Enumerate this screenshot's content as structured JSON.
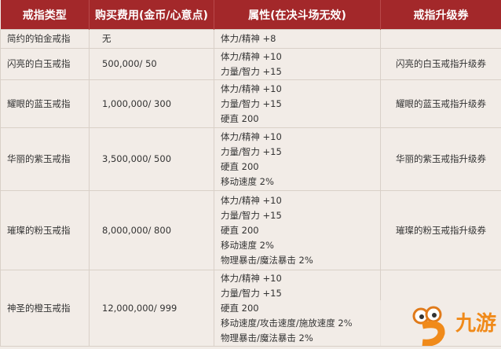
{
  "headers": [
    "戒指类型",
    "购买费用(金币/心意点)",
    "属性(在决斗场无效)",
    "戒指升级券"
  ],
  "rows": [
    {
      "name": "简约的铂金戒指",
      "cost": "无",
      "attrs": [
        "体力/精神 +8"
      ],
      "voucher": ""
    },
    {
      "name": "闪亮的白玉戒指",
      "cost": "500,000/ 50",
      "attrs": [
        "体力/精神 +10",
        "力量/智力 +15"
      ],
      "voucher": "闪亮的白玉戒指升级券"
    },
    {
      "name": "耀眼的蓝玉戒指",
      "cost": "1,000,000/ 300",
      "attrs": [
        "体力/精神 +10",
        "力量/智力 +15",
        "硬直 200"
      ],
      "voucher": "耀眼的蓝玉戒指升级券"
    },
    {
      "name": "华丽的紫玉戒指",
      "cost": "3,500,000/ 500",
      "attrs": [
        "体力/精神 +10",
        "力量/智力 +15",
        "硬直 200",
        "移动速度 2%"
      ],
      "voucher": "华丽的紫玉戒指升级券"
    },
    {
      "name": "璀璨的粉玉戒指",
      "cost": "8,000,000/ 800",
      "attrs": [
        "体力/精神 +10",
        "力量/智力 +15",
        "硬直 200",
        "移动速度 2%",
        "物理暴击/魔法暴击 2%"
      ],
      "voucher": "璀璨的粉玉戒指升级券"
    },
    {
      "name": "神圣的橙玉戒指",
      "cost": "12,000,000/ 999",
      "attrs": [
        "体力/精神 +10",
        "力量/智力 +15",
        "硬直 200",
        "移动速度/攻击速度/施放速度 2%",
        "物理暴击/魔法暴击 2%"
      ],
      "voucher": ""
    }
  ],
  "watermark": {
    "text": "九游",
    "icon": "mascot-9-logo"
  },
  "colors": {
    "header_bg": "#a3282a",
    "body_bg": "#f2ece7"
  }
}
